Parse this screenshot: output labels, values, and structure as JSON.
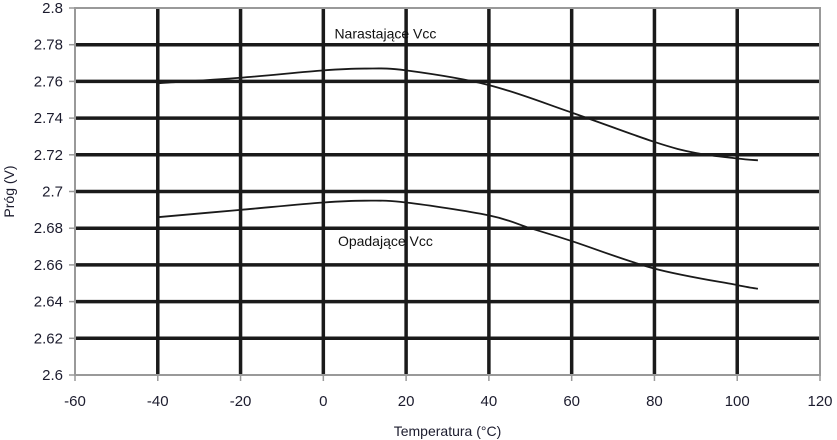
{
  "chart_data": {
    "type": "line",
    "title": "",
    "xlabel": "Temperatura (°C)",
    "ylabel": "Próg (V)",
    "xlim": [
      -60,
      120
    ],
    "ylim": [
      2.6,
      2.8
    ],
    "xticks": [
      -60,
      -40,
      -20,
      0,
      20,
      40,
      60,
      80,
      100,
      120
    ],
    "xtick_labels": [
      "-60",
      "-40",
      "-20",
      "0",
      "20",
      "40",
      "60",
      "80",
      "100",
      "120"
    ],
    "yticks": [
      2.6,
      2.62,
      2.64,
      2.66,
      2.68,
      2.7,
      2.72,
      2.74,
      2.76,
      2.78,
      2.8
    ],
    "ytick_labels": [
      "2.6",
      "2.62",
      "2.64",
      "2.66",
      "2.68",
      "2.7",
      "2.72",
      "2.74",
      "2.76",
      "2.78",
      "2.8"
    ],
    "grid": true,
    "colors": {
      "grid": "#1a1a1a",
      "frame": "#999999",
      "line": "#1a1a1a"
    },
    "annotations": [
      {
        "text": "Narastające Vcc",
        "x": 15,
        "y": 2.786
      },
      {
        "text": "Opadające Vcc",
        "x": 15,
        "y": 2.673
      }
    ],
    "series": [
      {
        "x": [
          -40,
          -20,
          0,
          10,
          20,
          40,
          60,
          80,
          90,
          100,
          105
        ],
        "y": [
          2.759,
          2.762,
          2.766,
          2.767,
          2.766,
          2.758,
          2.743,
          2.727,
          2.721,
          2.718,
          2.717
        ]
      },
      {
        "x": [
          -40,
          -20,
          0,
          10,
          20,
          40,
          50,
          60,
          80,
          100,
          105
        ],
        "y": [
          2.686,
          2.69,
          2.694,
          2.695,
          2.694,
          2.687,
          2.68,
          2.673,
          2.658,
          2.649,
          2.647
        ]
      }
    ]
  }
}
